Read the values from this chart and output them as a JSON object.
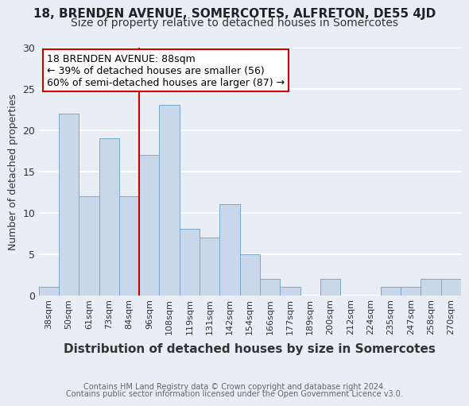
{
  "title1": "18, BRENDEN AVENUE, SOMERCOTES, ALFRETON, DE55 4JD",
  "title2": "Size of property relative to detached houses in Somercotes",
  "xlabel": "Distribution of detached houses by size in Somercotes",
  "ylabel": "Number of detached properties",
  "footnote1": "Contains HM Land Registry data © Crown copyright and database right 2024.",
  "footnote2": "Contains public sector information licensed under the Open Government Licence v3.0.",
  "categories": [
    "38sqm",
    "50sqm",
    "61sqm",
    "73sqm",
    "84sqm",
    "96sqm",
    "108sqm",
    "119sqm",
    "131sqm",
    "142sqm",
    "154sqm",
    "166sqm",
    "177sqm",
    "189sqm",
    "200sqm",
    "212sqm",
    "224sqm",
    "235sqm",
    "247sqm",
    "258sqm",
    "270sqm"
  ],
  "values": [
    1,
    22,
    12,
    19,
    12,
    17,
    23,
    8,
    7,
    11,
    5,
    2,
    1,
    0,
    2,
    0,
    0,
    1,
    1,
    2,
    2
  ],
  "bar_color": "#c8d8ea",
  "bar_edge_color": "#7aaac8",
  "vline_x": 4.5,
  "vline_color": "#cc0000",
  "annotation_text": "18 BRENDEN AVENUE: 88sqm\n← 39% of detached houses are smaller (56)\n60% of semi-detached houses are larger (87) →",
  "annotation_box_color": "white",
  "annotation_box_edge": "#cc0000",
  "ylim": [
    0,
    30
  ],
  "yticks": [
    0,
    5,
    10,
    15,
    20,
    25,
    30
  ],
  "background_color": "#e8eef4",
  "grid_color": "white",
  "title1_fontsize": 11,
  "title2_fontsize": 10,
  "xlabel_fontsize": 11,
  "ylabel_fontsize": 9,
  "xtick_fontsize": 8,
  "ytick_fontsize": 9,
  "annotation_fontsize": 9,
  "footnote_fontsize": 7
}
